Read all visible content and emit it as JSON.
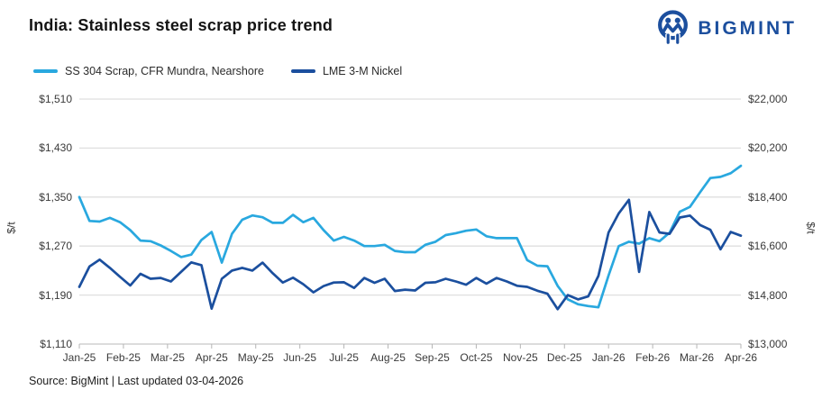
{
  "header": {
    "title": "India: Stainless steel scrap price trend",
    "brand": "BIGMINT"
  },
  "colors": {
    "ss304_line": "#29A8DF",
    "nickel_line": "#1B4F9E",
    "brand_blue": "#1C4F9E",
    "gridline": "#DFDFDF",
    "axis_line": "#C8C8C8",
    "tick": "#B5B5B5"
  },
  "legend": [
    {
      "label": "SS 304 Scrap, CFR Mundra, Nearshore",
      "color": "#29A8DF"
    },
    {
      "label": "LME 3-M Nickel",
      "color": "#1B4F9E"
    }
  ],
  "source_note": "Source: BigMint | Last updated 03-04-2026",
  "chart_data": {
    "type": "line",
    "grid": true,
    "legend_position": "top",
    "x_categories": [
      "Jan-25",
      "Feb-25",
      "Mar-25",
      "Apr-25",
      "May-25",
      "Jun-25",
      "Jul-25",
      "Aug-25",
      "Sep-25",
      "Oct-25",
      "Nov-25",
      "Dec-25",
      "Jan-26",
      "Feb-26",
      "Mar-26",
      "Apr-26"
    ],
    "left_axis": {
      "title": "$/t",
      "min": 1110,
      "max": 1510,
      "ticks": [
        "$1,510",
        "$1,430",
        "$1,350",
        "$1,270",
        "$1,190",
        "$1,110"
      ]
    },
    "right_axis": {
      "title": "$/t",
      "min": 13000,
      "max": 22000,
      "ticks": [
        "$22,000",
        "$20,200",
        "$18,400",
        "$16,600",
        "$14,800",
        "$13,000"
      ]
    },
    "series": [
      {
        "name": "SS 304 Scrap, CFR Mundra, Nearshore",
        "axis": "left",
        "color": "#29A8DF",
        "unit": "$/t",
        "values": [
          1350,
          1311,
          1310,
          1316,
          1309,
          1296,
          1279,
          1278,
          1271,
          1262,
          1252,
          1256,
          1280,
          1293,
          1243,
          1290,
          1313,
          1320,
          1317,
          1308,
          1308,
          1321,
          1309,
          1316,
          1296,
          1279,
          1285,
          1279,
          1270,
          1270,
          1272,
          1262,
          1260,
          1260,
          1272,
          1277,
          1288,
          1291,
          1295,
          1297,
          1286,
          1283,
          1283,
          1283,
          1247,
          1238,
          1237,
          1205,
          1183,
          1175,
          1172,
          1170,
          1222,
          1270,
          1277,
          1274,
          1283,
          1278,
          1292,
          1326,
          1334,
          1358,
          1381,
          1383,
          1389,
          1401
        ]
      },
      {
        "name": "LME 3-M Nickel",
        "axis": "right",
        "color": "#1B4F9E",
        "unit": "$/t",
        "values": [
          15100,
          15850,
          16100,
          15800,
          15470,
          15150,
          15580,
          15400,
          15430,
          15300,
          15650,
          16000,
          15900,
          14300,
          15400,
          15700,
          15800,
          15700,
          15990,
          15600,
          15260,
          15440,
          15200,
          14900,
          15130,
          15260,
          15270,
          15060,
          15430,
          15250,
          15400,
          14950,
          15000,
          14970,
          15250,
          15270,
          15400,
          15300,
          15180,
          15430,
          15220,
          15430,
          15300,
          15140,
          15100,
          14960,
          14850,
          14280,
          14800,
          14640,
          14750,
          15500,
          17100,
          17800,
          18300,
          15650,
          17850,
          17100,
          17050,
          17650,
          17720,
          17370,
          17200,
          16480,
          17120,
          16980
        ]
      }
    ]
  }
}
